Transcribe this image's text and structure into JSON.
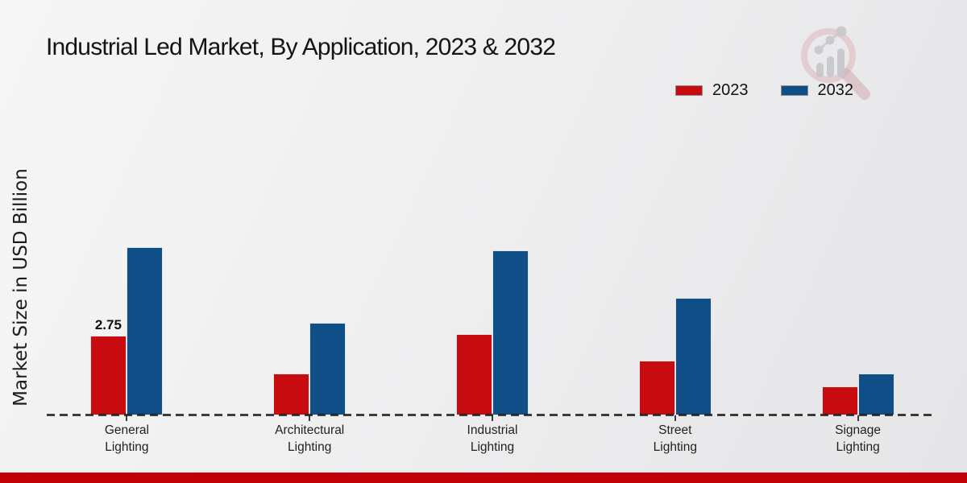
{
  "title": "Industrial Led Market, By Application, 2023 & 2032",
  "ylabel": "Market Size in USD Billion",
  "legend": [
    {
      "label": "2023",
      "color": "#c80b0f"
    },
    {
      "label": "2032",
      "color": "#0f4e87"
    }
  ],
  "colors": {
    "series_2023": "#c80b0f",
    "series_2032": "#0f4e87",
    "footer": "#c10105",
    "baseline_dash": "#1a1a1a",
    "watermark_ring": "#d9aeb2",
    "watermark_gray": "#bfbfc5"
  },
  "watermark": "market-research-logo",
  "chart_data": {
    "type": "bar",
    "title": "Industrial Led Market, By Application, 2023 & 2032",
    "xlabel": "",
    "ylabel": "Market Size in USD Billion",
    "categories": [
      "General Lighting",
      "Architectural Lighting",
      "Industrial Lighting",
      "Street Lighting",
      "Signage Lighting"
    ],
    "series": [
      {
        "name": "2023",
        "color": "#c80b0f",
        "values": [
          2.75,
          1.45,
          2.8,
          1.9,
          1.0
        ]
      },
      {
        "name": "2032",
        "color": "#0f4e87",
        "values": [
          5.8,
          3.2,
          5.7,
          4.05,
          1.45
        ]
      }
    ],
    "data_labels": [
      {
        "series_index": 0,
        "category_index": 0,
        "text": "2.75"
      }
    ],
    "ylim": [
      0,
      6.5
    ],
    "grid": false,
    "y_axis_ticks_visible": false,
    "baseline_style": "dashed",
    "legend_position": "top-right"
  }
}
